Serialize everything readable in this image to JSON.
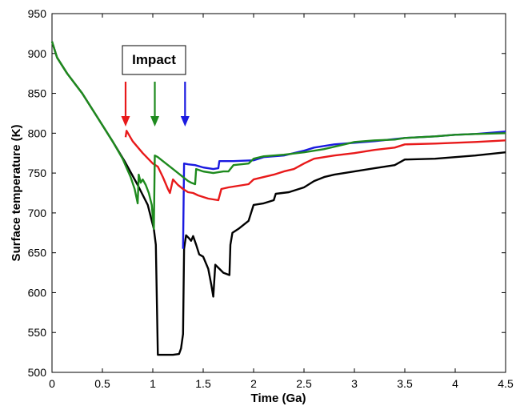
{
  "chart_data": {
    "type": "line",
    "title": "",
    "xlabel": "Time (Ga)",
    "ylabel": "Surface temperature (K)",
    "xlim": [
      0,
      4.5
    ],
    "ylim": [
      500,
      950
    ],
    "xticks": [
      0,
      0.5,
      1,
      1.5,
      2,
      2.5,
      3,
      3.5,
      4,
      4.5
    ],
    "xtick_labels": [
      "0",
      "0.5",
      "1",
      "1.5",
      "2",
      "2.5",
      "3",
      "3.5",
      "4",
      "4.5"
    ],
    "yticks": [
      500,
      550,
      600,
      650,
      700,
      750,
      800,
      850,
      900,
      950
    ],
    "ytick_labels": [
      "500",
      "550",
      "600",
      "650",
      "700",
      "750",
      "800",
      "850",
      "900",
      "950"
    ],
    "grid": false,
    "annotation": {
      "label": "Impact",
      "arrows": [
        {
          "x": 0.73,
          "color": "#e8191a"
        },
        {
          "x": 1.02,
          "color": "#1e8a1e"
        },
        {
          "x": 1.32,
          "color": "#1a1ae0"
        }
      ]
    },
    "series": [
      {
        "color": "#000000",
        "points": [
          [
            0,
            915
          ],
          [
            0.05,
            895
          ],
          [
            0.15,
            875
          ],
          [
            0.3,
            850
          ],
          [
            0.45,
            820
          ],
          [
            0.6,
            790
          ],
          [
            0.72,
            765
          ],
          [
            0.85,
            735
          ],
          [
            0.95,
            710
          ],
          [
            1.01,
            680
          ],
          [
            1.03,
            660
          ],
          [
            1.05,
            522
          ],
          [
            1.2,
            522
          ],
          [
            1.26,
            523
          ],
          [
            1.28,
            530
          ],
          [
            1.3,
            548
          ],
          [
            1.31,
            655
          ],
          [
            1.33,
            672
          ],
          [
            1.36,
            668
          ],
          [
            1.38,
            665
          ],
          [
            1.4,
            671
          ],
          [
            1.43,
            660
          ],
          [
            1.46,
            648
          ],
          [
            1.5,
            645
          ],
          [
            1.55,
            630
          ],
          [
            1.58,
            610
          ],
          [
            1.6,
            595
          ],
          [
            1.62,
            635
          ],
          [
            1.66,
            630
          ],
          [
            1.7,
            625
          ],
          [
            1.76,
            622
          ],
          [
            1.77,
            660
          ],
          [
            1.79,
            675
          ],
          [
            1.85,
            680
          ],
          [
            1.95,
            690
          ],
          [
            2.0,
            710
          ],
          [
            2.1,
            712
          ],
          [
            2.2,
            716
          ],
          [
            2.22,
            724
          ],
          [
            2.35,
            726
          ],
          [
            2.5,
            732
          ],
          [
            2.6,
            740
          ],
          [
            2.7,
            745
          ],
          [
            2.8,
            748
          ],
          [
            3.0,
            752
          ],
          [
            3.2,
            756
          ],
          [
            3.4,
            760
          ],
          [
            3.5,
            767
          ],
          [
            3.8,
            768
          ],
          [
            4.0,
            770
          ],
          [
            4.2,
            772
          ],
          [
            4.5,
            776
          ]
        ]
      },
      {
        "color": "#1a1ae0",
        "points": [
          [
            1.3,
            655
          ],
          [
            1.31,
            762
          ],
          [
            1.35,
            761
          ],
          [
            1.42,
            760
          ],
          [
            1.5,
            757
          ],
          [
            1.6,
            755
          ],
          [
            1.65,
            756
          ],
          [
            1.66,
            765
          ],
          [
            1.8,
            765
          ],
          [
            2.0,
            766
          ],
          [
            2.1,
            770
          ],
          [
            2.3,
            772
          ],
          [
            2.5,
            778
          ],
          [
            2.6,
            782
          ],
          [
            2.8,
            786
          ],
          [
            3.0,
            788
          ],
          [
            3.2,
            790
          ],
          [
            3.5,
            794
          ],
          [
            3.8,
            796
          ],
          [
            4.0,
            798
          ],
          [
            4.2,
            799
          ],
          [
            4.5,
            802
          ]
        ]
      },
      {
        "color": "#e8191a",
        "points": [
          [
            0.73,
            795
          ],
          [
            0.74,
            803
          ],
          [
            0.8,
            790
          ],
          [
            0.9,
            775
          ],
          [
            1.0,
            762
          ],
          [
            1.05,
            758
          ],
          [
            1.1,
            745
          ],
          [
            1.15,
            730
          ],
          [
            1.17,
            725
          ],
          [
            1.2,
            742
          ],
          [
            1.25,
            735
          ],
          [
            1.3,
            730
          ],
          [
            1.35,
            726
          ],
          [
            1.4,
            725
          ],
          [
            1.45,
            722
          ],
          [
            1.5,
            720
          ],
          [
            1.55,
            718
          ],
          [
            1.6,
            717
          ],
          [
            1.65,
            716
          ],
          [
            1.68,
            730
          ],
          [
            1.75,
            732
          ],
          [
            1.85,
            734
          ],
          [
            1.95,
            736
          ],
          [
            2.0,
            742
          ],
          [
            2.1,
            745
          ],
          [
            2.2,
            748
          ],
          [
            2.3,
            752
          ],
          [
            2.4,
            755
          ],
          [
            2.5,
            762
          ],
          [
            2.6,
            768
          ],
          [
            2.7,
            770
          ],
          [
            2.8,
            772
          ],
          [
            3.0,
            775
          ],
          [
            3.2,
            779
          ],
          [
            3.4,
            782
          ],
          [
            3.5,
            786
          ],
          [
            3.8,
            787
          ],
          [
            4.0,
            788
          ],
          [
            4.2,
            789
          ],
          [
            4.5,
            791
          ]
        ]
      },
      {
        "color": "#1e8a1e",
        "points": [
          [
            0,
            915
          ],
          [
            0.05,
            895
          ],
          [
            0.15,
            875
          ],
          [
            0.3,
            850
          ],
          [
            0.45,
            820
          ],
          [
            0.6,
            790
          ],
          [
            0.7,
            768
          ],
          [
            0.78,
            745
          ],
          [
            0.82,
            730
          ],
          [
            0.85,
            712
          ],
          [
            0.86,
            748
          ],
          [
            0.88,
            738
          ],
          [
            0.9,
            742
          ],
          [
            0.93,
            735
          ],
          [
            0.96,
            725
          ],
          [
            0.99,
            710
          ],
          [
            1.0,
            695
          ],
          [
            1.01,
            680
          ],
          [
            1.02,
            772
          ],
          [
            1.05,
            770
          ],
          [
            1.1,
            765
          ],
          [
            1.2,
            755
          ],
          [
            1.3,
            745
          ],
          [
            1.35,
            740
          ],
          [
            1.38,
            738
          ],
          [
            1.42,
            736
          ],
          [
            1.43,
            755
          ],
          [
            1.5,
            752
          ],
          [
            1.6,
            750
          ],
          [
            1.7,
            752
          ],
          [
            1.75,
            752
          ],
          [
            1.8,
            760
          ],
          [
            1.95,
            762
          ],
          [
            2.0,
            768
          ],
          [
            2.1,
            771
          ],
          [
            2.3,
            773
          ],
          [
            2.5,
            776
          ],
          [
            2.7,
            780
          ],
          [
            2.9,
            786
          ],
          [
            3.0,
            789
          ],
          [
            3.2,
            791
          ],
          [
            3.4,
            792
          ],
          [
            3.5,
            794
          ],
          [
            3.8,
            796
          ],
          [
            4.0,
            798
          ],
          [
            4.2,
            799
          ],
          [
            4.5,
            800
          ]
        ]
      }
    ]
  }
}
